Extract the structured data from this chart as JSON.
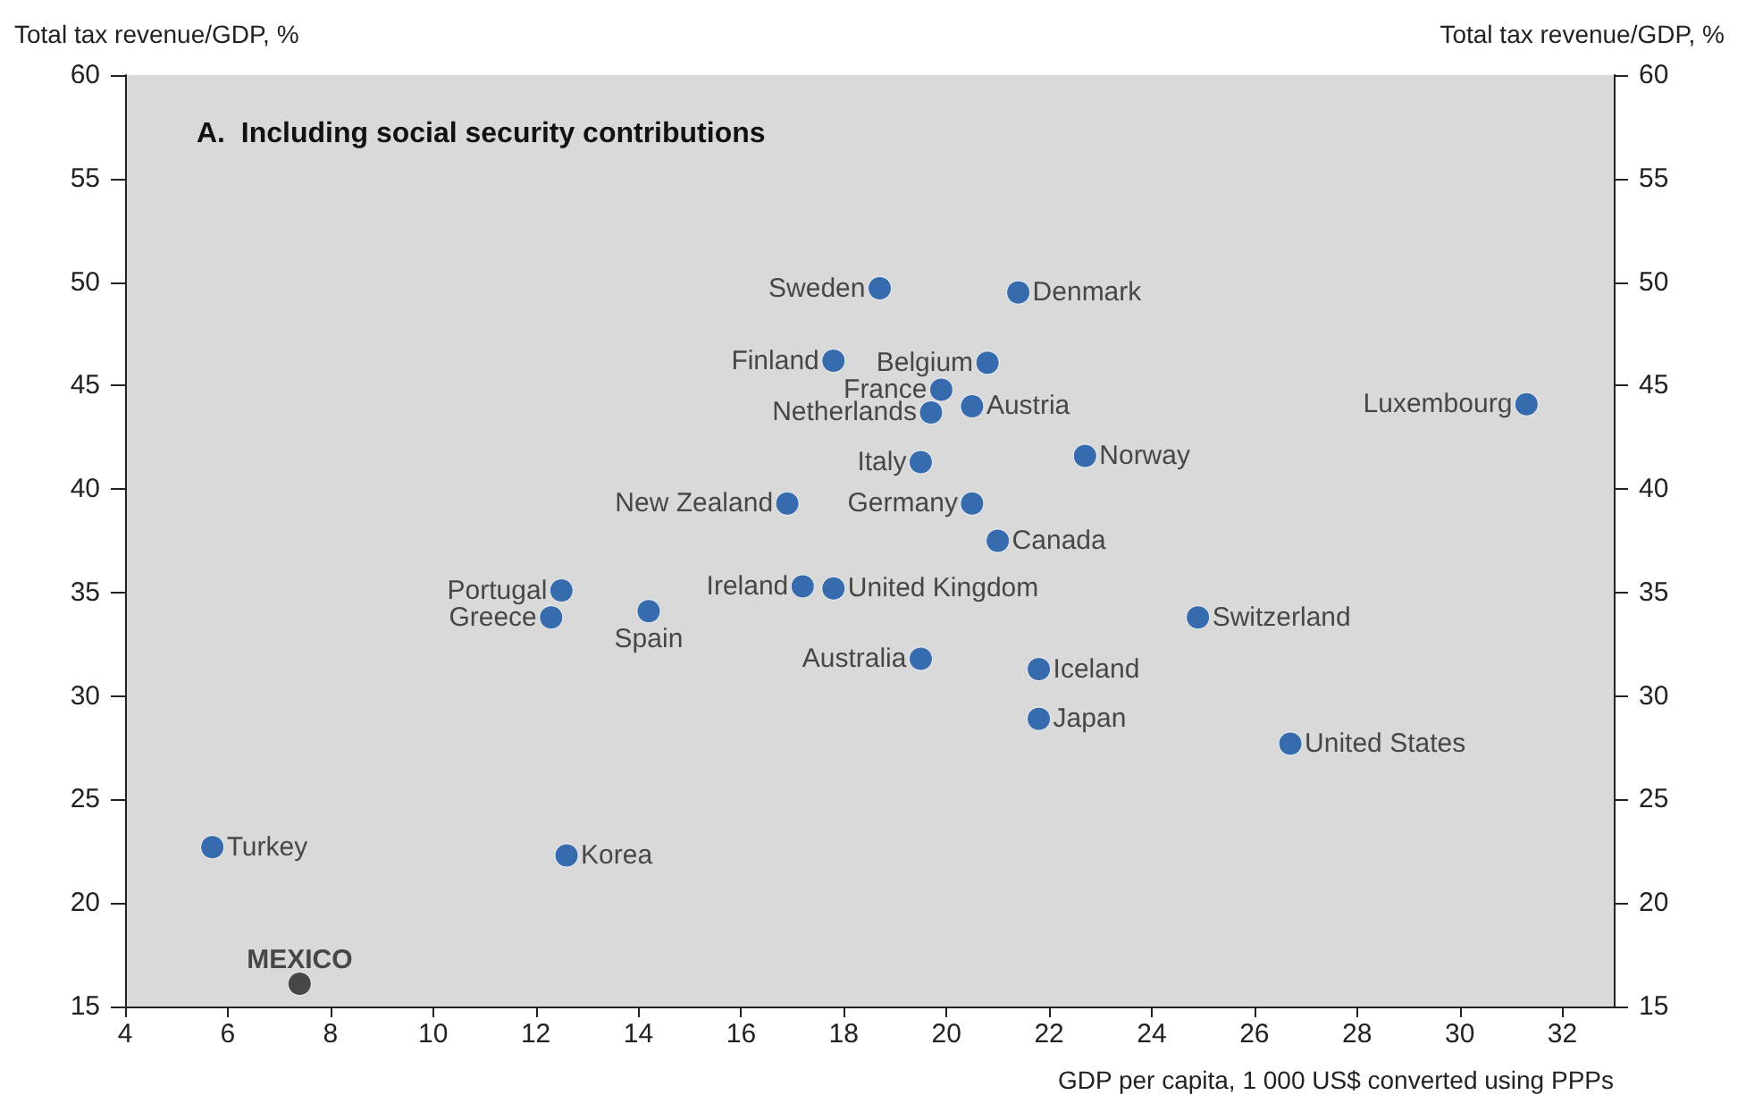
{
  "chart_data": {
    "type": "scatter",
    "title": "A.  Including social security contributions",
    "xlabel": "GDP per capita, 1 000 US$ converted using PPPs",
    "ylabel": "Total tax revenue/GDP, %",
    "y2label": "Total tax revenue/GDP, %",
    "x": [
      18.7,
      21.4,
      17.8,
      20.8,
      19.9,
      20.5,
      19.7,
      31.3,
      19.5,
      22.7,
      16.9,
      20.5,
      21.0,
      12.5,
      12.3,
      14.2,
      17.2,
      17.8,
      24.9,
      19.5,
      21.8,
      21.8,
      26.7,
      5.7,
      12.6,
      7.4
    ],
    "values": [
      49.7,
      49.5,
      46.2,
      46.1,
      44.8,
      44.0,
      43.7,
      44.1,
      41.3,
      41.6,
      39.3,
      39.3,
      37.5,
      35.1,
      33.8,
      34.1,
      35.3,
      35.2,
      33.8,
      31.8,
      31.3,
      28.9,
      27.7,
      22.7,
      22.3,
      16.1
    ],
    "colors": [
      "#0d4fa3",
      "#0d4fa3",
      "#0d4fa3",
      "#0d4fa3",
      "#0d4fa3",
      "#0d4fa3",
      "#0d4fa3",
      "#0d4fa3",
      "#0d4fa3",
      "#0d4fa3",
      "#0d4fa3",
      "#0d4fa3",
      "#0d4fa3",
      "#0d4fa3",
      "#0d4fa3",
      "#0d4fa3",
      "#0d4fa3",
      "#0d4fa3",
      "#0d4fa3",
      "#0d4fa3",
      "#0d4fa3",
      "#0d4fa3",
      "#0d4fa3",
      "#0d4fa3",
      "#0d4fa3",
      "#222222"
    ],
    "annotations": [
      {
        "text": "Sweden",
        "x": 18.7,
        "y": 49.7
      },
      {
        "text": "Denmark",
        "x": 21.4,
        "y": 49.5
      },
      {
        "text": "Finland",
        "x": 17.8,
        "y": 46.2
      },
      {
        "text": "Belgium",
        "x": 20.8,
        "y": 46.1
      },
      {
        "text": "France",
        "x": 19.9,
        "y": 44.8
      },
      {
        "text": "Austria",
        "x": 20.5,
        "y": 44.0
      },
      {
        "text": "Netherlands",
        "x": 19.7,
        "y": 43.7
      },
      {
        "text": "Luxembourg",
        "x": 31.3,
        "y": 44.1
      },
      {
        "text": "Italy",
        "x": 19.5,
        "y": 41.3
      },
      {
        "text": "Norway",
        "x": 22.7,
        "y": 41.6
      },
      {
        "text": "New Zealand",
        "x": 16.9,
        "y": 39.3
      },
      {
        "text": "Germany",
        "x": 20.5,
        "y": 39.3
      },
      {
        "text": "Canada",
        "x": 21.0,
        "y": 37.5
      },
      {
        "text": "Portugal",
        "x": 12.5,
        "y": 35.1
      },
      {
        "text": "Greece",
        "x": 12.3,
        "y": 33.8
      },
      {
        "text": "Spain",
        "x": 14.2,
        "y": 34.1
      },
      {
        "text": "Ireland",
        "x": 17.2,
        "y": 35.3
      },
      {
        "text": "United Kingdom",
        "x": 17.8,
        "y": 35.2
      },
      {
        "text": "Switzerland",
        "x": 24.9,
        "y": 33.8
      },
      {
        "text": "Australia",
        "x": 19.5,
        "y": 31.8
      },
      {
        "text": "Iceland",
        "x": 21.8,
        "y": 31.3
      },
      {
        "text": "Japan",
        "x": 21.8,
        "y": 28.9
      },
      {
        "text": "United States",
        "x": 26.7,
        "y": 27.7
      },
      {
        "text": "Turkey",
        "x": 5.7,
        "y": 22.7
      },
      {
        "text": "Korea",
        "x": 12.6,
        "y": 22.3
      },
      {
        "text": "MEXICO",
        "x": 7.4,
        "y": 16.1
      }
    ],
    "xlim": [
      4,
      33
    ],
    "xticks": [
      4,
      6,
      8,
      10,
      12,
      14,
      16,
      18,
      20,
      22,
      24,
      26,
      28,
      30,
      32
    ],
    "ylim": [
      15,
      60
    ],
    "yticks": [
      15,
      20,
      25,
      30,
      35,
      40,
      45,
      50,
      55,
      60
    ],
    "y2lim": [
      15,
      60
    ],
    "y2ticks": [
      15,
      20,
      25,
      30,
      35,
      40,
      45,
      50,
      55,
      60
    ],
    "marker": "circle"
  }
}
